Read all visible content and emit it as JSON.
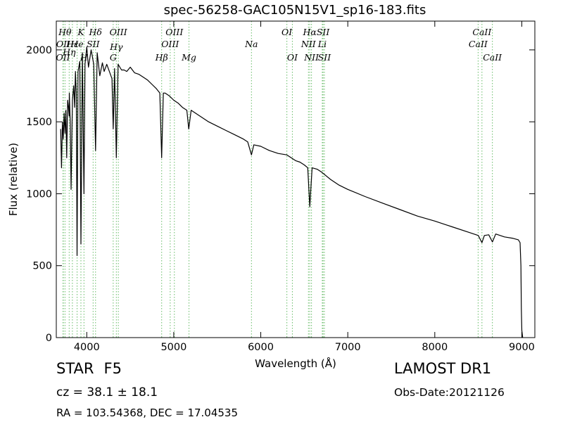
{
  "title": "spec-56258-GAC105N15V1_sp16-183.fits",
  "object": {
    "class": "STAR",
    "subclass": "F5"
  },
  "redshift_text": "cz = 38.1  ± 18.1",
  "coords_text": "RA = 103.54368, DEC = 17.04535",
  "survey": "LAMOST DR1",
  "obs_date": "Obs-Date:20121126",
  "chart_data": {
    "type": "line",
    "title": "spec-56258-GAC105N15V1_sp16-183.fits",
    "xlabel": "Wavelength (Å)",
    "ylabel": "Flux (relative)",
    "xlim": [
      3650,
      9150
    ],
    "ylim": [
      0,
      2200
    ],
    "xticks": [
      4000,
      5000,
      6000,
      7000,
      8000,
      9000
    ],
    "xtick_labels": [
      "4000",
      "5000",
      "6000",
      "7000",
      "8000",
      "9000"
    ],
    "yticks": [
      0,
      500,
      1000,
      1500,
      2000
    ],
    "ytick_labels": [
      "0",
      "500",
      "1000",
      "1500",
      "2000"
    ],
    "grid": false,
    "line_color": "#000000",
    "marker_color": "#66bb66",
    "series": [
      {
        "x": [
          3700,
          3710,
          3720,
          3730,
          3740,
          3750,
          3760,
          3770,
          3780,
          3790,
          3798,
          3800,
          3810,
          3820,
          3835,
          3850,
          3860,
          3870,
          3880,
          3889,
          3900,
          3920,
          3933,
          3950,
          3968,
          3980,
          4000,
          4020,
          4050,
          4080,
          4101,
          4120,
          4150,
          4180,
          4200,
          4230,
          4260,
          4290,
          4304,
          4320,
          4340,
          4360,
          4380,
          4400,
          4430,
          4460,
          4500,
          4550,
          4600,
          4650,
          4700,
          4750,
          4800,
          4840,
          4861,
          4880,
          4900,
          4950,
          5000,
          5050,
          5100,
          5150,
          5172,
          5200,
          5250,
          5300,
          5400,
          5500,
          5600,
          5700,
          5800,
          5850,
          5893,
          5920,
          6000,
          6100,
          6200,
          6300,
          6400,
          6450,
          6500,
          6540,
          6563,
          6590,
          6650,
          6700,
          6800,
          6900,
          7000,
          7200,
          7400,
          7600,
          7800,
          8000,
          8200,
          8400,
          8500,
          8542,
          8570,
          8620,
          8662,
          8700,
          8800,
          8900,
          8960,
          8980,
          8990,
          8995,
          9000,
          9010
        ],
        "y": [
          1450,
          1180,
          1500,
          1380,
          1560,
          1420,
          1580,
          1250,
          1650,
          1600,
          1540,
          1700,
          1500,
          1030,
          1650,
          1750,
          1600,
          1850,
          1700,
          570,
          1850,
          1920,
          650,
          1980,
          1000,
          1900,
          2020,
          1880,
          2000,
          1900,
          1300,
          1980,
          1820,
          1910,
          1850,
          1900,
          1850,
          1800,
          1450,
          1870,
          1250,
          1900,
          1880,
          1860,
          1860,
          1850,
          1880,
          1840,
          1830,
          1810,
          1790,
          1760,
          1730,
          1700,
          1250,
          1700,
          1700,
          1680,
          1650,
          1630,
          1600,
          1580,
          1450,
          1580,
          1560,
          1540,
          1500,
          1470,
          1440,
          1410,
          1380,
          1360,
          1270,
          1340,
          1330,
          1300,
          1280,
          1270,
          1230,
          1220,
          1200,
          1180,
          910,
          1180,
          1170,
          1150,
          1100,
          1060,
          1030,
          980,
          935,
          890,
          845,
          810,
          770,
          730,
          710,
          660,
          710,
          715,
          665,
          720,
          700,
          690,
          680,
          660,
          500,
          200,
          50,
          0
        ]
      }
    ],
    "lines": [
      {
        "x": 3727,
        "label": "OII",
        "row": 2
      },
      {
        "x": 3730,
        "label": "OII",
        "row": 1
      },
      {
        "x": 3750,
        "label": "Hθ",
        "row": 0
      },
      {
        "x": 3798,
        "label": "Hη",
        "row": 1.6
      },
      {
        "x": 3835,
        "label": "Hε",
        "row": 1
      },
      {
        "x": 3889,
        "label": "He",
        "row": 1
      },
      {
        "x": 3933,
        "label": "K",
        "row": 0
      },
      {
        "x": 3968,
        "label": "H",
        "row": 2
      },
      {
        "x": 4073,
        "label": "SII",
        "row": 1
      },
      {
        "x": 4101,
        "label": "Hδ",
        "row": 0
      },
      {
        "x": 4304,
        "label": "G",
        "row": 2
      },
      {
        "x": 4340,
        "label": "Hγ",
        "row": 1.2
      },
      {
        "x": 4363,
        "label": "OIII",
        "row": 0
      },
      {
        "x": 4861,
        "label": "Hβ",
        "row": 2
      },
      {
        "x": 4959,
        "label": "OIII",
        "row": 1
      },
      {
        "x": 5007,
        "label": "OIII",
        "row": 0
      },
      {
        "x": 5175,
        "label": "Mg",
        "row": 2
      },
      {
        "x": 5893,
        "label": "Na",
        "row": 1
      },
      {
        "x": 6300,
        "label": "OI",
        "row": 0
      },
      {
        "x": 6363,
        "label": "OI",
        "row": 2
      },
      {
        "x": 6548,
        "label": "NII",
        "row": 1
      },
      {
        "x": 6563,
        "label": "Hα",
        "row": 0
      },
      {
        "x": 6583,
        "label": "NII",
        "row": 2
      },
      {
        "x": 6707,
        "label": "Li",
        "row": 1
      },
      {
        "x": 6716,
        "label": "SII",
        "row": 0
      },
      {
        "x": 6731,
        "label": "SII",
        "row": 2
      },
      {
        "x": 8498,
        "label": "CaII",
        "row": 1
      },
      {
        "x": 8542,
        "label": "CaII",
        "row": 0
      },
      {
        "x": 8662,
        "label": "CaII",
        "row": 2
      }
    ]
  }
}
